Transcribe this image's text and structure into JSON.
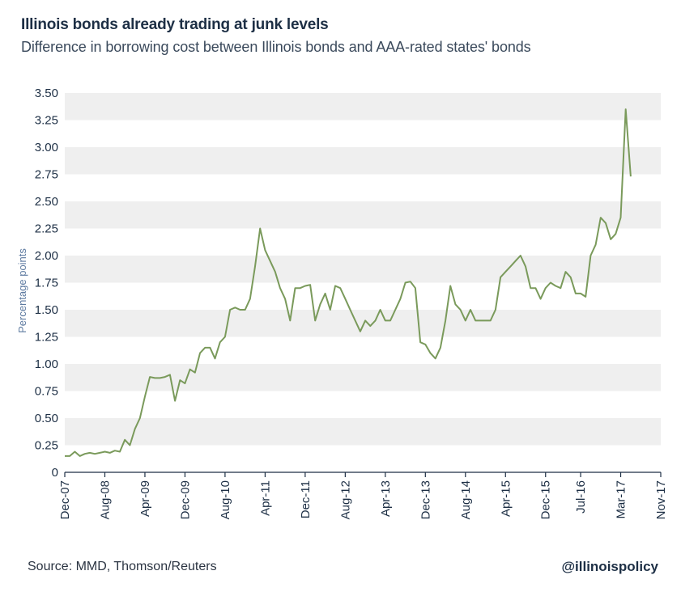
{
  "title": "Illinois bonds already trading at junk levels",
  "subtitle": "Difference in borrowing cost between Illinois bonds and AAA-rated states' bonds",
  "source": "Source: MMD, Thomson/Reuters",
  "handle": "@illinoispolicy",
  "colors": {
    "line": "#7a9a5b",
    "band": "#efefef",
    "axis": "#1d2f45",
    "text": "#1d2f45"
  },
  "chart_data": {
    "type": "line",
    "ylabel": "Percentage points",
    "ylim": [
      0,
      3.5
    ],
    "y_ticks": [
      {
        "value": 0,
        "label": "0"
      },
      {
        "value": 0.25,
        "label": "0.25"
      },
      {
        "value": 0.5,
        "label": "0.50"
      },
      {
        "value": 0.75,
        "label": "0.75"
      },
      {
        "value": 1.0,
        "label": "1.00"
      },
      {
        "value": 1.25,
        "label": "1.25"
      },
      {
        "value": 1.5,
        "label": "1.50"
      },
      {
        "value": 1.75,
        "label": "1.75"
      },
      {
        "value": 2.0,
        "label": "2.00"
      },
      {
        "value": 2.25,
        "label": "2.25"
      },
      {
        "value": 2.5,
        "label": "2.50"
      },
      {
        "value": 2.75,
        "label": "2.75"
      },
      {
        "value": 3.0,
        "label": "3.00"
      },
      {
        "value": 3.25,
        "label": "3.25"
      },
      {
        "value": 3.5,
        "label": "3.50"
      }
    ],
    "x_ticks": [
      "Dec-07",
      "Aug-08",
      "Apr-09",
      "Dec-09",
      "Aug-10",
      "Apr-11",
      "Dec-11",
      "Aug-12",
      "Apr-13",
      "Dec-13",
      "Aug-14",
      "Apr-15",
      "Dec-15",
      "Jul-16",
      "Mar-17",
      "Nov-17"
    ],
    "xlim": [
      "2007-12",
      "2017-11"
    ],
    "grid": "alternating horizontal bands",
    "series": [
      {
        "x": [
          "2007-12",
          "2008-01",
          "2008-02",
          "2008-03",
          "2008-04",
          "2008-05",
          "2008-06",
          "2008-07",
          "2008-08",
          "2008-09",
          "2008-10",
          "2008-11",
          "2008-12",
          "2009-01",
          "2009-02",
          "2009-03",
          "2009-04",
          "2009-05",
          "2009-06",
          "2009-07",
          "2009-08",
          "2009-09",
          "2009-10",
          "2009-11",
          "2009-12",
          "2010-01",
          "2010-02",
          "2010-03",
          "2010-04",
          "2010-05",
          "2010-06",
          "2010-07",
          "2010-08",
          "2010-09",
          "2010-10",
          "2010-11",
          "2010-12",
          "2011-01",
          "2011-02",
          "2011-03",
          "2011-04",
          "2011-05",
          "2011-06",
          "2011-07",
          "2011-08",
          "2011-09",
          "2011-10",
          "2011-11",
          "2011-12",
          "2012-01",
          "2012-02",
          "2012-03",
          "2012-04",
          "2012-05",
          "2012-06",
          "2012-07",
          "2012-08",
          "2012-09",
          "2012-10",
          "2012-11",
          "2012-12",
          "2013-01",
          "2013-02",
          "2013-03",
          "2013-04",
          "2013-05",
          "2013-06",
          "2013-07",
          "2013-08",
          "2013-09",
          "2013-10",
          "2013-11",
          "2013-12",
          "2014-01",
          "2014-02",
          "2014-03",
          "2014-04",
          "2014-05",
          "2014-06",
          "2014-07",
          "2014-08",
          "2014-09",
          "2014-10",
          "2014-11",
          "2014-12",
          "2015-01",
          "2015-02",
          "2015-03",
          "2015-04",
          "2015-05",
          "2015-06",
          "2015-07",
          "2015-08",
          "2015-09",
          "2015-10",
          "2015-11",
          "2015-12",
          "2016-01",
          "2016-02",
          "2016-03",
          "2016-04",
          "2016-05",
          "2016-06",
          "2016-07",
          "2016-08",
          "2016-09",
          "2016-10",
          "2016-11",
          "2016-12",
          "2017-01",
          "2017-02",
          "2017-03",
          "2017-04",
          "2017-05"
        ],
        "y": [
          0.15,
          0.15,
          0.19,
          0.15,
          0.17,
          0.18,
          0.17,
          0.18,
          0.19,
          0.18,
          0.2,
          0.19,
          0.3,
          0.25,
          0.4,
          0.5,
          0.7,
          0.88,
          0.87,
          0.87,
          0.88,
          0.9,
          0.66,
          0.85,
          0.82,
          0.95,
          0.92,
          1.1,
          1.15,
          1.15,
          1.05,
          1.2,
          1.25,
          1.5,
          1.52,
          1.5,
          1.5,
          1.6,
          1.9,
          2.25,
          2.05,
          1.95,
          1.85,
          1.7,
          1.6,
          1.4,
          1.7,
          1.7,
          1.72,
          1.73,
          1.4,
          1.55,
          1.65,
          1.5,
          1.72,
          1.7,
          1.6,
          1.5,
          1.4,
          1.3,
          1.4,
          1.35,
          1.4,
          1.5,
          1.4,
          1.4,
          1.5,
          1.6,
          1.75,
          1.76,
          1.7,
          1.2,
          1.18,
          1.1,
          1.05,
          1.15,
          1.4,
          1.72,
          1.55,
          1.5,
          1.4,
          1.5,
          1.4,
          1.4,
          1.4,
          1.4,
          1.5,
          1.8,
          1.85,
          1.9,
          1.95,
          2.0,
          1.9,
          1.7,
          1.7,
          1.6,
          1.7,
          1.75,
          1.72,
          1.7,
          1.85,
          1.8,
          1.65,
          1.65,
          1.62,
          2.0,
          2.1,
          2.35,
          2.3,
          2.15,
          2.2,
          2.35,
          3.35,
          2.73
        ]
      }
    ]
  }
}
